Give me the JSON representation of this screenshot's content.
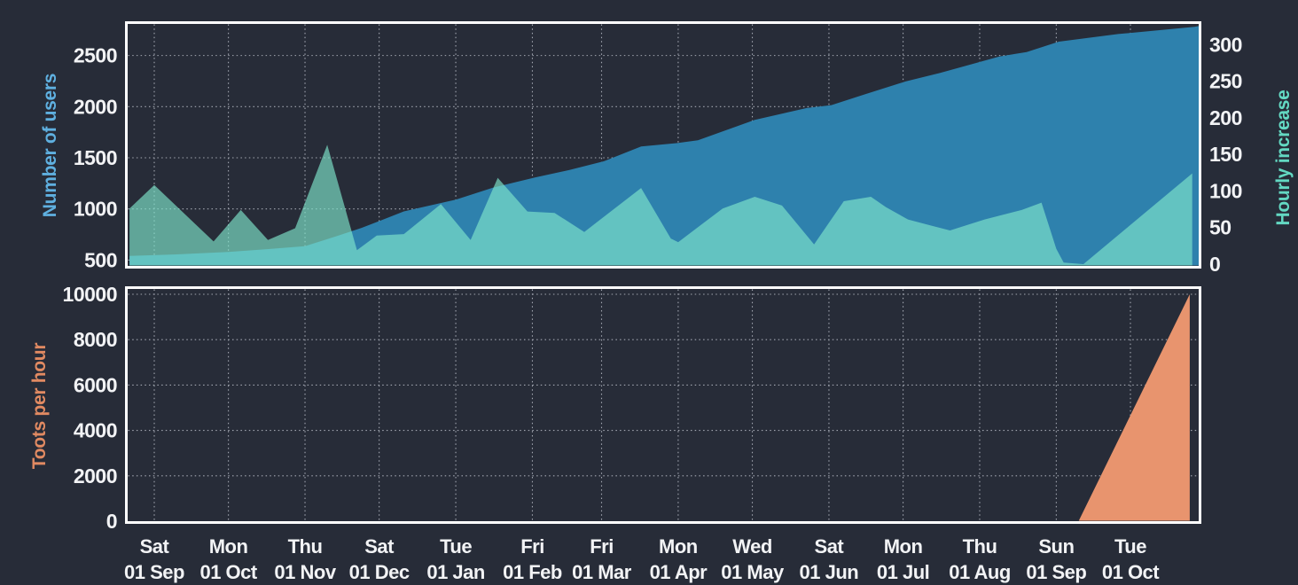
{
  "page": {
    "background": "#272c38",
    "plot_border_color": "#ffffff",
    "grid_color": "#b9bdc7",
    "tick_text_color": "#f2f3f5"
  },
  "chart_data": [
    {
      "type": "area",
      "title": "Users growth (top chart)",
      "x_axis": {
        "unit": "days since 01 Sep",
        "range": [
          -10,
          423
        ],
        "labels_visible": false,
        "ticks": [
          {
            "day": 0,
            "weekday": "Sat",
            "date": "01 Sep"
          },
          {
            "day": 30,
            "weekday": "Mon",
            "date": "01 Oct"
          },
          {
            "day": 61,
            "weekday": "Thu",
            "date": "01 Nov"
          },
          {
            "day": 91,
            "weekday": "Sat",
            "date": "01 Dec"
          },
          {
            "day": 122,
            "weekday": "Tue",
            "date": "01 Jan"
          },
          {
            "day": 153,
            "weekday": "Fri",
            "date": "01 Feb"
          },
          {
            "day": 181,
            "weekday": "Fri",
            "date": "01 Mar"
          },
          {
            "day": 212,
            "weekday": "Mon",
            "date": "01 Apr"
          },
          {
            "day": 242,
            "weekday": "Wed",
            "date": "01 May"
          },
          {
            "day": 273,
            "weekday": "Sat",
            "date": "01 Jun"
          },
          {
            "day": 303,
            "weekday": "Mon",
            "date": "01 Jul"
          },
          {
            "day": 334,
            "weekday": "Thu",
            "date": "01 Aug"
          },
          {
            "day": 365,
            "weekday": "Sun",
            "date": "01 Sep"
          },
          {
            "day": 395,
            "weekday": "Tue",
            "date": "01 Oct"
          }
        ]
      },
      "left_axis": {
        "label": "Number of users",
        "label_color": "#5fb0e0",
        "ticks": [
          500,
          1000,
          1500,
          2000,
          2500
        ],
        "range": [
          460,
          2800
        ]
      },
      "right_axis": {
        "label": "Hourly increase",
        "label_color": "#63d8c2",
        "ticks": [
          0,
          50,
          100,
          150,
          200,
          250,
          300
        ],
        "range": [
          0,
          327
        ]
      },
      "series": [
        {
          "name": "Number of users",
          "axis": "left",
          "fill": "#2e81ad",
          "opacity": 1,
          "points": [
            [
              -10,
              540
            ],
            [
              9,
              555
            ],
            [
              30,
              580
            ],
            [
              45,
              606
            ],
            [
              61,
              635
            ],
            [
              73,
              728
            ],
            [
              84,
              815
            ],
            [
              92,
              890
            ],
            [
              101,
              976
            ],
            [
              122,
              1091
            ],
            [
              137,
              1207
            ],
            [
              154,
              1308
            ],
            [
              168,
              1380
            ],
            [
              182,
              1466
            ],
            [
              197,
              1611
            ],
            [
              212,
              1645
            ],
            [
              220,
              1671
            ],
            [
              243,
              1871
            ],
            [
              264,
              1986
            ],
            [
              274,
              2015
            ],
            [
              287,
              2116
            ],
            [
              304,
              2246
            ],
            [
              318,
              2330
            ],
            [
              342,
              2491
            ],
            [
              353,
              2534
            ],
            [
              366,
              2635
            ],
            [
              390,
              2710
            ],
            [
              421,
              2780
            ],
            [
              423,
              2790
            ]
          ]
        },
        {
          "name": "Hourly increase",
          "axis": "right",
          "fill": "#7fe6cd",
          "opacity": 0.65,
          "points": [
            [
              -10,
              76
            ],
            [
              0,
              108
            ],
            [
              24,
              31
            ],
            [
              35,
              74
            ],
            [
              46,
              33
            ],
            [
              57,
              49
            ],
            [
              70,
              163
            ],
            [
              82,
              19
            ],
            [
              90,
              39
            ],
            [
              101,
              41
            ],
            [
              116,
              82
            ],
            [
              128,
              33
            ],
            [
              139,
              118
            ],
            [
              151,
              72
            ],
            [
              162,
              70
            ],
            [
              174,
              44
            ],
            [
              197,
              104
            ],
            [
              209,
              35
            ],
            [
              212,
              30
            ],
            [
              230,
              76
            ],
            [
              243,
              92
            ],
            [
              254,
              80
            ],
            [
              267,
              27
            ],
            [
              279,
              86
            ],
            [
              290,
              92
            ],
            [
              296,
              78
            ],
            [
              305,
              61
            ],
            [
              314,
              53
            ],
            [
              322,
              46
            ],
            [
              336,
              61
            ],
            [
              351,
              74
            ],
            [
              359,
              84
            ],
            [
              365,
              21
            ],
            [
              368,
              2
            ],
            [
              376,
              0
            ],
            [
              420,
              124
            ]
          ]
        }
      ]
    },
    {
      "type": "area",
      "title": "Toots per hour (bottom chart)",
      "x_axis": {
        "unit": "days since 01 Sep",
        "range": [
          -10,
          423
        ],
        "labels_visible": true,
        "ticks": [
          {
            "day": 0,
            "weekday": "Sat",
            "date": "01 Sep"
          },
          {
            "day": 30,
            "weekday": "Mon",
            "date": "01 Oct"
          },
          {
            "day": 61,
            "weekday": "Thu",
            "date": "01 Nov"
          },
          {
            "day": 91,
            "weekday": "Sat",
            "date": "01 Dec"
          },
          {
            "day": 122,
            "weekday": "Tue",
            "date": "01 Jan"
          },
          {
            "day": 153,
            "weekday": "Fri",
            "date": "01 Feb"
          },
          {
            "day": 181,
            "weekday": "Fri",
            "date": "01 Mar"
          },
          {
            "day": 212,
            "weekday": "Mon",
            "date": "01 Apr"
          },
          {
            "day": 242,
            "weekday": "Wed",
            "date": "01 May"
          },
          {
            "day": 273,
            "weekday": "Sat",
            "date": "01 Jun"
          },
          {
            "day": 303,
            "weekday": "Mon",
            "date": "01 Jul"
          },
          {
            "day": 334,
            "weekday": "Thu",
            "date": "01 Aug"
          },
          {
            "day": 365,
            "weekday": "Sun",
            "date": "01 Sep"
          },
          {
            "day": 395,
            "weekday": "Tue",
            "date": "01 Oct"
          }
        ]
      },
      "left_axis": {
        "label": "Toots per hour",
        "label_color": "#e18a62",
        "ticks": [
          0,
          2000,
          4000,
          6000,
          8000,
          10000
        ],
        "range": [
          0,
          10000
        ]
      },
      "series": [
        {
          "name": "Toots per hour",
          "axis": "left",
          "fill": "#e8946e",
          "opacity": 1,
          "points": [
            [
              -10,
              0
            ],
            [
              374,
              0
            ],
            [
              419,
              10000
            ]
          ]
        }
      ]
    }
  ]
}
